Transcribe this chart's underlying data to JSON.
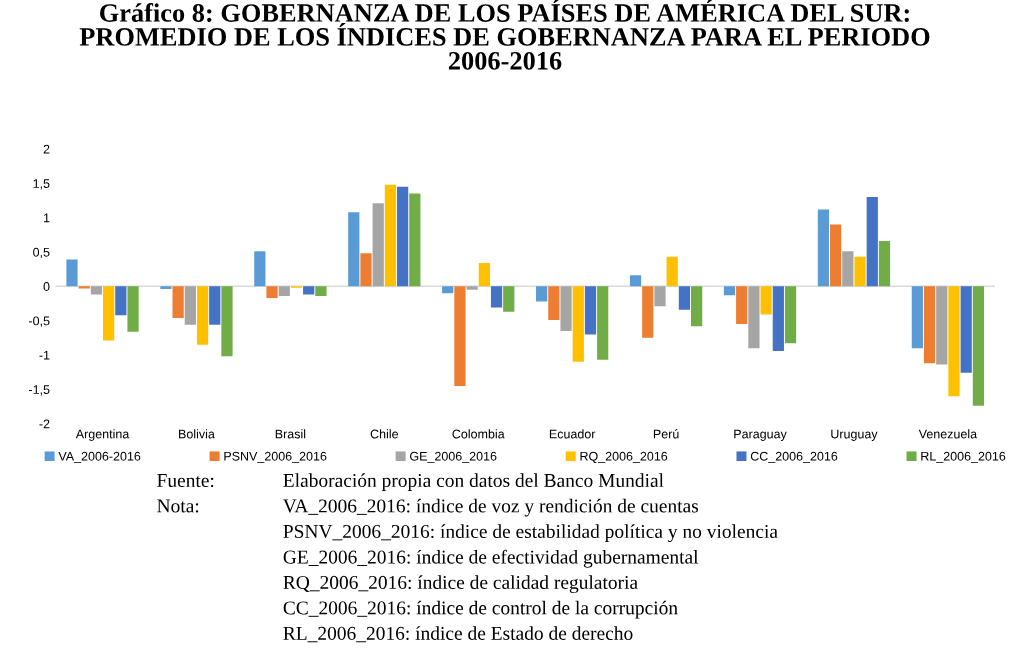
{
  "chart_data": {
    "type": "bar",
    "title": "Gráfico 8: GOBERNANZA DE LOS PAÍSES DE AMÉRICA DEL SUR:\nPROMEDIO DE LOS ÍNDICES DE GOBERNANZA PARA EL PERIODO\n2006-2016",
    "categories": [
      "Argentina",
      "Bolivia",
      "Brasil",
      "Chile",
      "Colombia",
      "Ecuador",
      "Perú",
      "Paraguay",
      "Uruguay",
      "Venezuela"
    ],
    "series": [
      {
        "name": "VA_2006-2016",
        "color": "#5b9bd5",
        "values": [
          0.39,
          -0.04,
          0.51,
          1.08,
          -0.1,
          -0.22,
          0.16,
          -0.13,
          1.12,
          -0.9
        ]
      },
      {
        "name": "PSNV_2006_2016",
        "color": "#ed7d31",
        "values": [
          -0.03,
          -0.46,
          -0.17,
          0.48,
          -1.45,
          -0.49,
          -0.75,
          -0.55,
          0.9,
          -1.12
        ]
      },
      {
        "name": "GE_2006_2016",
        "color": "#a5a5a5",
        "values": [
          -0.12,
          -0.56,
          -0.14,
          1.21,
          -0.05,
          -0.65,
          -0.29,
          -0.9,
          0.51,
          -1.14
        ]
      },
      {
        "name": "RQ_2006_2016",
        "color": "#ffc000",
        "values": [
          -0.79,
          -0.85,
          -0.02,
          1.48,
          0.34,
          -1.1,
          0.43,
          -0.41,
          0.43,
          -1.6
        ]
      },
      {
        "name": "CC_2006_2016",
        "color": "#4472c4",
        "values": [
          -0.42,
          -0.56,
          -0.12,
          1.45,
          -0.31,
          -0.7,
          -0.34,
          -0.94,
          1.3,
          -1.26
        ]
      },
      {
        "name": "RL_2006_2016",
        "color": "#70ad47",
        "values": [
          -0.66,
          -1.02,
          -0.14,
          1.35,
          -0.37,
          -1.07,
          -0.58,
          -0.83,
          0.66,
          -1.74
        ]
      }
    ],
    "ylim": [
      -2,
      2
    ],
    "yticks": [
      {
        "value": -2,
        "label": "-2"
      },
      {
        "value": -1.5,
        "label": "-1,5"
      },
      {
        "value": -1,
        "label": "-1"
      },
      {
        "value": -0.5,
        "label": "-0,5"
      },
      {
        "value": 0,
        "label": "0"
      },
      {
        "value": 0.5,
        "label": "0,5"
      },
      {
        "value": 1,
        "label": "1"
      },
      {
        "value": 1.5,
        "label": "1,5"
      },
      {
        "value": 2,
        "label": "2"
      }
    ],
    "ref_lines": [
      {
        "axis": "y",
        "value": 0,
        "color": "#d9d9d9"
      }
    ],
    "grid": false,
    "legend": "bottom",
    "annotations": [
      "Fuente:\tElaboración propia con datos del Banco Mundial",
      "Nota:\tVA_2006_2016: índice de voz y rendición de cuentas",
      "PSNV_2006_2016: índice de estabilidad política y no violencia",
      "GE_2006_2016: índice de efectividad gubernamental",
      "RQ_2006_2016: índice de calidad regulatoria",
      "CC_2006_2016: índice de control de la corrupción",
      "RL_2006_2016: índice de Estado de derecho"
    ]
  }
}
